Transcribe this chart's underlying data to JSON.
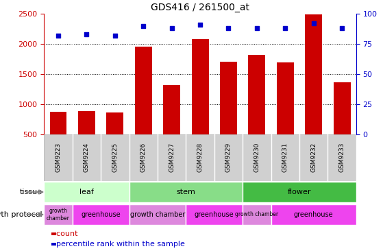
{
  "title": "GDS416 / 261500_at",
  "samples": [
    "GSM9223",
    "GSM9224",
    "GSM9225",
    "GSM9226",
    "GSM9227",
    "GSM9228",
    "GSM9229",
    "GSM9230",
    "GSM9231",
    "GSM9232",
    "GSM9233"
  ],
  "counts": [
    870,
    890,
    860,
    1950,
    1320,
    2080,
    1700,
    1820,
    1690,
    2490,
    1360
  ],
  "percentiles": [
    82,
    83,
    82,
    90,
    88,
    91,
    88,
    88,
    88,
    92,
    88
  ],
  "bar_color": "#cc0000",
  "dot_color": "#0000cc",
  "ylim_left": [
    500,
    2500
  ],
  "ylim_right": [
    0,
    100
  ],
  "yticks_left": [
    500,
    1000,
    1500,
    2000,
    2500
  ],
  "yticks_right": [
    0,
    25,
    50,
    75,
    100
  ],
  "tissue_groups": [
    {
      "label": "leaf",
      "start": 0,
      "end": 3,
      "color": "#ccffcc"
    },
    {
      "label": "stem",
      "start": 3,
      "end": 7,
      "color": "#88dd88"
    },
    {
      "label": "flower",
      "start": 7,
      "end": 11,
      "color": "#44bb44"
    }
  ],
  "growth_groups": [
    {
      "label": "growth\nchamber",
      "start": 0,
      "end": 1,
      "color": "#dd88dd"
    },
    {
      "label": "greenhouse",
      "start": 1,
      "end": 3,
      "color": "#ee44ee"
    },
    {
      "label": "growth chamber",
      "start": 3,
      "end": 5,
      "color": "#dd88dd"
    },
    {
      "label": "greenhouse",
      "start": 5,
      "end": 7,
      "color": "#ee44ee"
    },
    {
      "label": "growth chamber",
      "start": 7,
      "end": 8,
      "color": "#dd88dd"
    },
    {
      "label": "greenhouse",
      "start": 8,
      "end": 11,
      "color": "#ee44ee"
    }
  ],
  "tissue_label": "tissue",
  "growth_label": "growth protocol",
  "legend_count_label": "count",
  "legend_percentile_label": "percentile rank within the sample",
  "background_color": "#ffffff",
  "xticklabel_color": "#000000",
  "left_axis_color": "#cc0000",
  "right_axis_color": "#0000cc",
  "label_box_color": "#d0d0d0",
  "bar_bottom": 500
}
